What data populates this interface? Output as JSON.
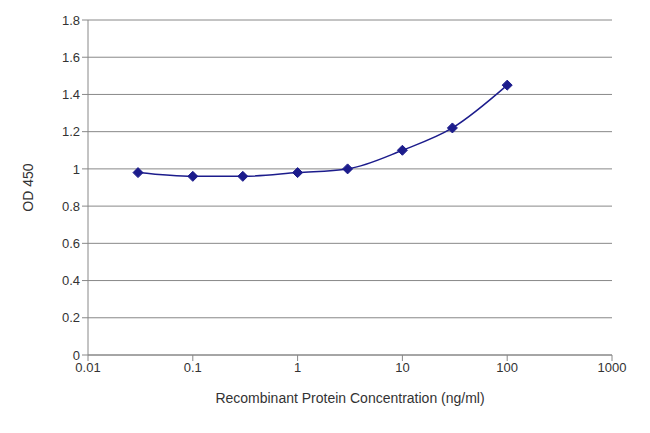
{
  "chart_data": {
    "type": "line",
    "x_label": "Recombinant Protein Concentration (ng/ml)",
    "y_label": "OD 450",
    "x": [
      0.03,
      0.1,
      0.3,
      1,
      3,
      10,
      30,
      100
    ],
    "values": [
      0.98,
      0.96,
      0.96,
      0.98,
      1.0,
      1.1,
      1.22,
      1.45
    ],
    "color": "#1c1c8c",
    "marker": "diamond",
    "log": "x",
    "xlim": [
      0.01,
      1000
    ],
    "xticks": [
      0.01,
      0.1,
      1,
      10,
      100,
      1000
    ],
    "ylim": [
      0,
      1.8
    ],
    "yticks": [
      0,
      0.2,
      0.4,
      0.6,
      0.8,
      1,
      1.2,
      1.4,
      1.6,
      1.8
    ],
    "grid": true
  }
}
